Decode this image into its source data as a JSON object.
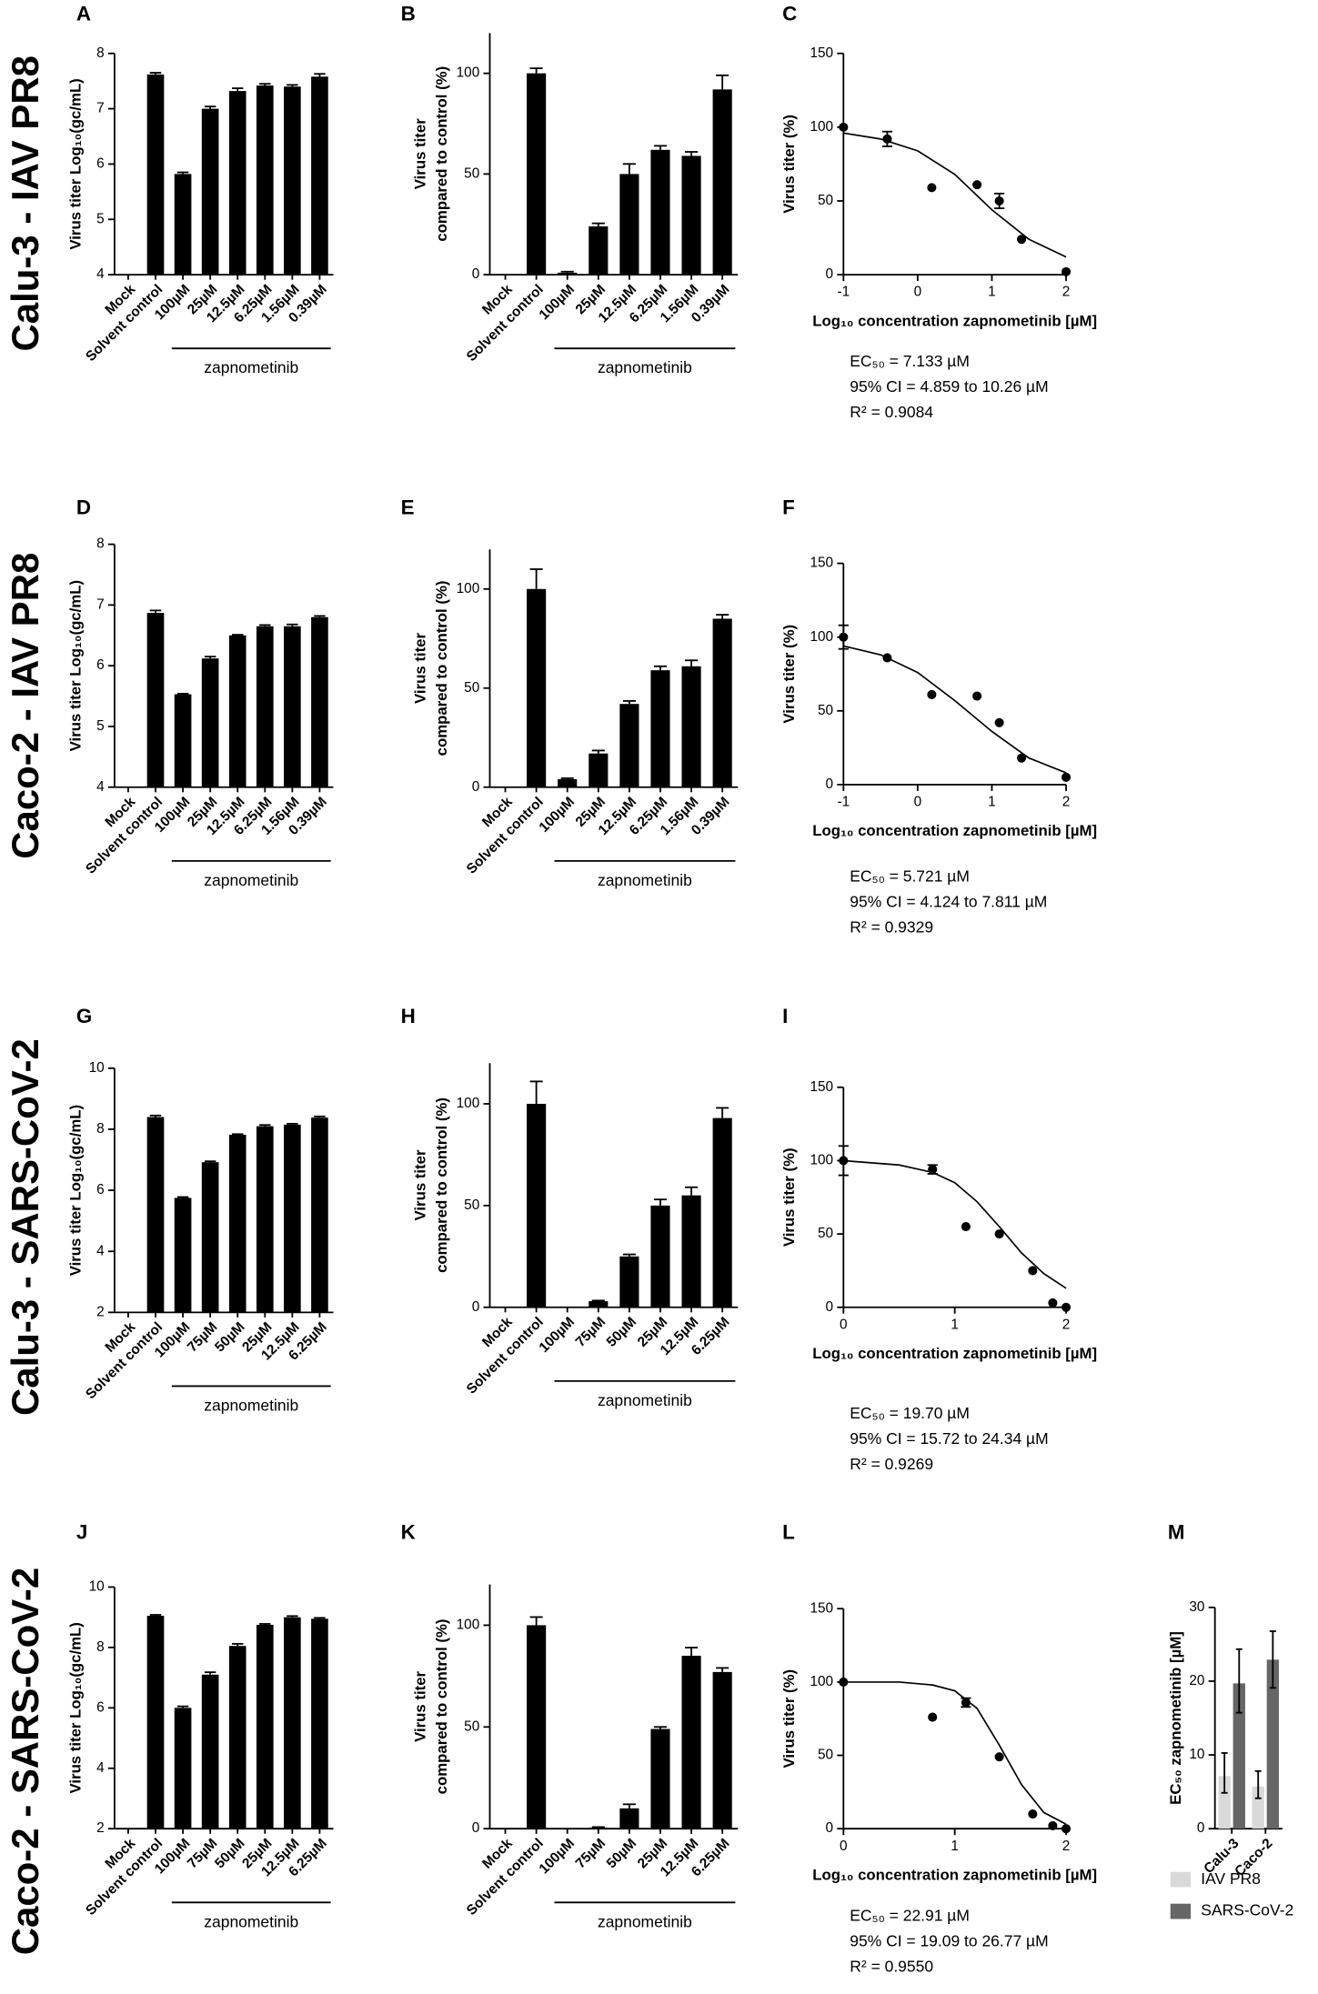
{
  "row_labels": [
    "Calu-3 - IAV PR8",
    "Caco-2 - IAV PR8",
    "Calu-3 - SARS-CoV-2",
    "Caco-2 - SARS-CoV-2"
  ],
  "chart_data": [
    {
      "type": "bar",
      "panel": "A",
      "ylabel": "Virus titer Log₁₀(gc/mL)",
      "group_label": "zapnometinib",
      "categories": [
        "Mock",
        "Solvent control",
        "100µM",
        "25µM",
        "12.5µM",
        "6.25µM",
        "1.56µM",
        "0.39µM"
      ],
      "values": [
        null,
        7.62,
        5.82,
        7.0,
        7.32,
        7.42,
        7.4,
        7.58
      ],
      "errors": [
        null,
        0.03,
        0.03,
        0.04,
        0.05,
        0.03,
        0.03,
        0.05
      ],
      "ylim": [
        4,
        8
      ],
      "yticks": [
        4,
        5,
        6,
        7,
        8
      ],
      "color": "#000000"
    },
    {
      "type": "bar",
      "panel": "B",
      "ylabel": [
        "Virus titer",
        "compared to control (%)"
      ],
      "group_label": "zapnometinib",
      "categories": [
        "Mock",
        "Solvent control",
        "100µM",
        "25µM",
        "12.5µM",
        "6.25µM",
        "1.56µM",
        "0.39µM"
      ],
      "values": [
        null,
        100,
        1,
        24,
        50,
        62,
        59,
        92
      ],
      "errors": [
        null,
        2.5,
        0.5,
        1.5,
        5,
        2,
        2,
        7
      ],
      "ylim": [
        0,
        120
      ],
      "yticks": [
        0,
        50,
        100
      ],
      "color": "#000000"
    },
    {
      "type": "curve",
      "panel": "C",
      "ylabel": "Virus titer (%)",
      "xlabel": "Log₁₀ concentration zapnometinib [µM]",
      "x": [
        -1,
        -0.41,
        0.19,
        0.8,
        1.1,
        1.4,
        2
      ],
      "values": [
        100,
        92,
        59,
        61,
        50,
        24,
        2
      ],
      "errors": [
        null,
        5,
        null,
        null,
        5,
        null,
        null
      ],
      "fit": {
        "x": [
          -1,
          -0.5,
          0,
          0.5,
          1,
          1.5,
          2
        ],
        "y": [
          96,
          92,
          84,
          68,
          44,
          24,
          12
        ]
      },
      "xlim": [
        -1,
        2
      ],
      "xticks": [
        -1,
        0,
        1,
        2
      ],
      "ylim": [
        0,
        150
      ],
      "yticks": [
        0,
        50,
        100,
        150
      ],
      "annotations": [
        "EC₅₀ = 7.133 µM",
        "95% CI = 4.859 to 10.26 µM",
        "R² = 0.9084"
      ],
      "color": "#000000"
    },
    {
      "type": "bar",
      "panel": "D",
      "ylabel": "Virus titer Log₁₀(gc/mL)",
      "group_label": "zapnometinib",
      "categories": [
        "Mock",
        "Solvent control",
        "100µM",
        "25µM",
        "12.5µM",
        "6.25µM",
        "1.56µM",
        "0.39µM"
      ],
      "values": [
        null,
        6.87,
        5.53,
        6.12,
        6.5,
        6.65,
        6.65,
        6.8
      ],
      "errors": [
        null,
        0.04,
        0.01,
        0.03,
        0.01,
        0.02,
        0.03,
        0.02
      ],
      "ylim": [
        4,
        8
      ],
      "yticks": [
        4,
        5,
        6,
        7,
        8
      ],
      "color": "#000000"
    },
    {
      "type": "bar",
      "panel": "E",
      "ylabel": [
        "Virus titer",
        "compared to control (%)"
      ],
      "group_label": "zapnometinib",
      "categories": [
        "Mock",
        "Solvent control",
        "100µM",
        "25µM",
        "12.5µM",
        "6.25µM",
        "1.56µM",
        "0.39µM"
      ],
      "values": [
        null,
        100,
        4,
        17,
        42,
        59,
        61,
        85
      ],
      "errors": [
        null,
        10,
        0.5,
        1.5,
        1.5,
        2,
        3,
        2
      ],
      "ylim": [
        0,
        120
      ],
      "yticks": [
        0,
        50,
        100
      ],
      "color": "#000000"
    },
    {
      "type": "curve",
      "panel": "F",
      "ylabel": "Virus titer (%)",
      "xlabel": "Log₁₀ concentration zapnometinib [µM]",
      "x": [
        -1,
        -0.41,
        0.19,
        0.8,
        1.1,
        1.4,
        2
      ],
      "values": [
        100,
        86,
        61,
        60,
        42,
        18,
        5
      ],
      "errors": [
        8,
        null,
        null,
        null,
        null,
        null,
        null
      ],
      "fit": {
        "x": [
          -1,
          -0.5,
          0,
          0.5,
          1,
          1.5,
          2
        ],
        "y": [
          94,
          88,
          76,
          57,
          36,
          18,
          8
        ]
      },
      "xlim": [
        -1,
        2
      ],
      "xticks": [
        -1,
        0,
        1,
        2
      ],
      "ylim": [
        0,
        150
      ],
      "yticks": [
        0,
        50,
        100,
        150
      ],
      "annotations": [
        "EC₅₀ = 5.721 µM",
        "95% CI = 4.124 to 7.811 µM",
        "R² = 0.9329"
      ],
      "color": "#000000"
    },
    {
      "type": "bar",
      "panel": "G",
      "ylabel": "Virus titer Log₁₀(gc/mL)",
      "group_label": "zapnometinib",
      "categories": [
        "Mock",
        "Solvent control",
        "100µM",
        "75µM",
        "50µM",
        "25µM",
        "12.5µM",
        "6.25µM"
      ],
      "values": [
        null,
        8.4,
        5.75,
        6.92,
        7.82,
        8.1,
        8.15,
        8.38
      ],
      "errors": [
        null,
        0.05,
        0.03,
        0.03,
        0.02,
        0.04,
        0.03,
        0.04
      ],
      "ylim": [
        2,
        10
      ],
      "yticks": [
        2,
        4,
        6,
        8,
        10
      ],
      "color": "#000000"
    },
    {
      "type": "bar",
      "panel": "H",
      "ylabel": [
        "Virus titer",
        "compared to control (%)"
      ],
      "group_label": "zapnometinib",
      "categories": [
        "Mock",
        "Solvent control",
        "100µM",
        "75µM",
        "50µM",
        "25µM",
        "12.5µM",
        "6.25µM"
      ],
      "values": [
        null,
        100,
        0,
        3,
        25,
        50,
        55,
        93
      ],
      "errors": [
        null,
        11,
        null,
        0.3,
        1,
        3,
        4,
        5
      ],
      "ylim": [
        0,
        120
      ],
      "yticks": [
        0,
        50,
        100
      ],
      "color": "#000000"
    },
    {
      "type": "curve",
      "panel": "I",
      "ylabel": "Virus titer (%)",
      "xlabel": "Log₁₀ concentration zapnometinib [µM]",
      "x": [
        0,
        0.8,
        1.1,
        1.4,
        1.7,
        1.88,
        2
      ],
      "values": [
        100,
        94,
        55,
        50,
        25,
        3,
        0
      ],
      "errors": [
        10,
        3,
        null,
        null,
        null,
        null,
        null
      ],
      "fit": {
        "x": [
          0,
          0.5,
          0.8,
          1,
          1.2,
          1.4,
          1.6,
          1.8,
          2
        ],
        "y": [
          100,
          97,
          92,
          85,
          72,
          55,
          37,
          23,
          13
        ]
      },
      "xlim": [
        0,
        2
      ],
      "xticks": [
        0,
        1,
        2
      ],
      "ylim": [
        0,
        150
      ],
      "yticks": [
        0,
        50,
        100,
        150
      ],
      "annotations": [
        "EC₅₀ = 19.70 µM",
        "95% CI = 15.72 to 24.34 µM",
        "R² = 0.9269"
      ],
      "color": "#000000"
    },
    {
      "type": "bar",
      "panel": "J",
      "ylabel": "Virus titer Log₁₀(gc/mL)",
      "group_label": "zapnometinib",
      "categories": [
        "Mock",
        "Solvent control",
        "100µM",
        "75µM",
        "50µM",
        "25µM",
        "12.5µM",
        "6.25µM"
      ],
      "values": [
        null,
        9.05,
        6.0,
        7.1,
        8.05,
        8.75,
        9.0,
        8.95
      ],
      "errors": [
        null,
        0.03,
        0.05,
        0.08,
        0.07,
        0.03,
        0.04,
        0.03
      ],
      "ylim": [
        2,
        10
      ],
      "yticks": [
        2,
        4,
        6,
        8,
        10
      ],
      "color": "#000000"
    },
    {
      "type": "bar",
      "panel": "K",
      "ylabel": [
        "Virus titer",
        "compared to control (%)"
      ],
      "group_label": "zapnometinib",
      "categories": [
        "Mock",
        "Solvent control",
        "100µM",
        "75µM",
        "50µM",
        "25µM",
        "12.5µM",
        "6.25µM"
      ],
      "values": [
        null,
        100,
        0,
        0.5,
        10,
        49,
        85,
        77
      ],
      "errors": [
        null,
        4,
        null,
        0.3,
        2,
        1,
        4,
        2
      ],
      "ylim": [
        0,
        120
      ],
      "yticks": [
        0,
        50,
        100
      ],
      "color": "#000000"
    },
    {
      "type": "curve",
      "panel": "L",
      "ylabel": "Virus titer (%)",
      "xlabel": "Log₁₀ concentration zapnometinib [µM]",
      "x": [
        0,
        0.8,
        1.1,
        1.4,
        1.7,
        1.88,
        2
      ],
      "values": [
        100,
        76,
        86,
        49,
        10,
        2,
        0
      ],
      "errors": [
        null,
        null,
        3,
        null,
        null,
        null,
        null
      ],
      "fit": {
        "x": [
          0,
          0.5,
          0.8,
          1,
          1.2,
          1.4,
          1.6,
          1.8,
          2
        ],
        "y": [
          100,
          100,
          98,
          94,
          82,
          57,
          30,
          11,
          3
        ]
      },
      "xlim": [
        0,
        2
      ],
      "xticks": [
        0,
        1,
        2
      ],
      "ylim": [
        0,
        150
      ],
      "yticks": [
        0,
        50,
        100,
        150
      ],
      "annotations": [
        "EC₅₀ = 22.91 µM",
        "95% CI = 19.09 to 26.77 µM",
        "R² = 0.9550"
      ],
      "color": "#000000"
    },
    {
      "type": "grouped_bar",
      "panel": "M",
      "ylabel": "EC₅₀ zapnometinib [µM]",
      "categories": [
        "Calu-3",
        "Caco-2"
      ],
      "series": [
        {
          "name": "IAV PR8",
          "color": "#d9d9d9",
          "values": [
            7.133,
            5.721
          ],
          "lower": [
            4.859,
            4.124
          ],
          "upper": [
            10.26,
            7.811
          ]
        },
        {
          "name": "SARS-CoV-2",
          "color": "#666666",
          "values": [
            19.7,
            22.91
          ],
          "lower": [
            15.72,
            19.09
          ],
          "upper": [
            24.34,
            26.77
          ]
        }
      ],
      "ylim": [
        0,
        30
      ],
      "yticks": [
        0,
        10,
        20,
        30
      ]
    }
  ]
}
